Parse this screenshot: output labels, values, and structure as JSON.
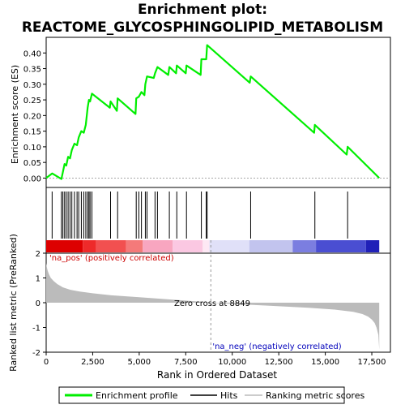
{
  "title_line1": "Enrichment plot:",
  "title_line2": "REACTOME_GLYCOSPHINGOLIPID_METABOLISM",
  "colors": {
    "enrichment_line": "#00ee00",
    "hits": "#000000",
    "ranking_fill": "#bbbbbb",
    "pos_label": "#cc0000",
    "neg_label": "#0000bb",
    "zero_line": "#999999"
  },
  "chart_data": [
    {
      "type": "line",
      "panel": "enrichment",
      "ylabel": "Enrichment score (ES)",
      "ylim": [
        -0.03,
        0.45
      ],
      "yticks": [
        "0.00",
        "0.05",
        "0.10",
        "0.15",
        "0.20",
        "0.25",
        "0.30",
        "0.35",
        "0.40"
      ],
      "xlim": [
        0,
        18500
      ],
      "grid": false,
      "series": [
        {
          "name": "Enrichment profile",
          "x": [
            0,
            320,
            820,
            900,
            990,
            1080,
            1180,
            1280,
            1380,
            1520,
            1660,
            1750,
            1890,
            2020,
            2130,
            2230,
            2300,
            2360,
            2460,
            3420,
            3460,
            3800,
            3840,
            4800,
            4840,
            4980,
            5120,
            5280,
            5330,
            5420,
            5780,
            5850,
            5980,
            6560,
            6620,
            6980,
            7020,
            7500,
            7540,
            8300,
            8340,
            8600,
            8650,
            10940,
            10990,
            14400,
            14440,
            16150,
            16200,
            17900
          ],
          "y": [
            0.0,
            0.015,
            -0.003,
            0.02,
            0.045,
            0.04,
            0.068,
            0.063,
            0.09,
            0.11,
            0.105,
            0.13,
            0.15,
            0.145,
            0.17,
            0.225,
            0.25,
            0.245,
            0.27,
            0.225,
            0.245,
            0.215,
            0.255,
            0.205,
            0.255,
            0.26,
            0.275,
            0.265,
            0.3,
            0.325,
            0.32,
            0.335,
            0.355,
            0.33,
            0.355,
            0.335,
            0.36,
            0.335,
            0.36,
            0.33,
            0.38,
            0.38,
            0.425,
            0.305,
            0.325,
            0.145,
            0.17,
            0.075,
            0.1,
            0.0
          ]
        }
      ]
    },
    {
      "type": "ticks",
      "panel": "hits",
      "name": "Hits",
      "positions": [
        320,
        820,
        900,
        990,
        1080,
        1180,
        1280,
        1380,
        1520,
        1660,
        1750,
        1890,
        2020,
        2130,
        2230,
        2300,
        2360,
        2460,
        3460,
        3840,
        4840,
        4980,
        5120,
        5330,
        5420,
        5850,
        5980,
        6620,
        7020,
        7540,
        8340,
        8600,
        8650,
        10990,
        14440,
        16200
      ]
    },
    {
      "type": "area",
      "panel": "ranking",
      "name": "Ranking metric scores",
      "ylabel": "Ranked list metric (PreRanked)",
      "xlabel": "Rank in Ordered Dataset",
      "ylim": [
        -2,
        2
      ],
      "yticks": [
        "-2",
        "-1",
        "0",
        "1",
        "2"
      ],
      "xlim": [
        0,
        18500
      ],
      "xticks": [
        "0",
        "2,500",
        "5,000",
        "7,500",
        "10,000",
        "12,500",
        "15,000",
        "17,500"
      ],
      "x": [
        0,
        30,
        80,
        150,
        250,
        400,
        600,
        900,
        1300,
        1800,
        2500,
        3500,
        5000,
        6500,
        8000,
        8849,
        10000,
        12000,
        14000,
        15500,
        16500,
        17000,
        17300,
        17500,
        17650,
        17750,
        17850,
        17900
      ],
      "values": [
        1.6,
        1.45,
        1.3,
        1.15,
        1.0,
        0.88,
        0.75,
        0.62,
        0.52,
        0.45,
        0.38,
        0.3,
        0.22,
        0.14,
        0.06,
        0.0,
        -0.05,
        -0.12,
        -0.2,
        -0.28,
        -0.37,
        -0.46,
        -0.56,
        -0.68,
        -0.82,
        -1.0,
        -1.3,
        -1.9
      ],
      "zero_cross_label": "Zero cross at 8849",
      "zero_cross": 8849,
      "pos_label": "'na_pos' (positively correlated)",
      "neg_label": "'na_neg' (negatively correlated)"
    }
  ],
  "color_bar": {
    "segments": [
      {
        "end": 0.11,
        "color": "#dd0000"
      },
      {
        "end": 0.15,
        "color": "#ee2a2a"
      },
      {
        "end": 0.24,
        "color": "#f25050"
      },
      {
        "end": 0.29,
        "color": "#f47a7a"
      },
      {
        "end": 0.38,
        "color": "#f8a6c0"
      },
      {
        "end": 0.47,
        "color": "#fbc8e2"
      },
      {
        "end": 0.49,
        "color": "#fde8f4"
      },
      {
        "end": 0.61,
        "color": "#e0e0f8"
      },
      {
        "end": 0.74,
        "color": "#c2c4ee"
      },
      {
        "end": 0.81,
        "color": "#7b7ee0"
      },
      {
        "end": 0.96,
        "color": "#4a4ed2"
      },
      {
        "end": 1.0,
        "color": "#2020b8"
      }
    ]
  },
  "legend": {
    "items": [
      {
        "label": "Enrichment profile",
        "kind": "green-line"
      },
      {
        "label": "Hits",
        "kind": "black-line"
      },
      {
        "label": "Ranking metric scores",
        "kind": "gray-line"
      }
    ]
  }
}
